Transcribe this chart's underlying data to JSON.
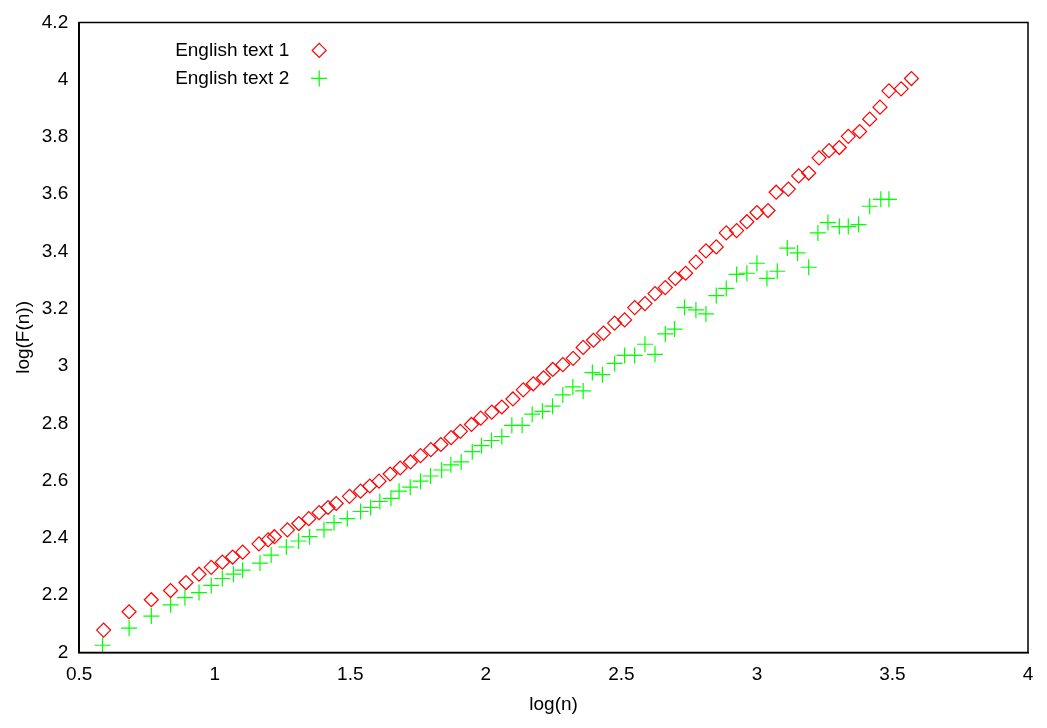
{
  "chart_data": {
    "type": "scatter",
    "xlabel": "log(n)",
    "ylabel": "log(F(n))",
    "xlim": [
      0.5,
      4
    ],
    "xticks": [
      0.5,
      1,
      1.5,
      2,
      2.5,
      3,
      3.5,
      4
    ],
    "ylim": [
      2,
      4.2
    ],
    "yticks": [
      2,
      2.2,
      2.4,
      2.6,
      2.8,
      3,
      3.2,
      3.4,
      3.6,
      3.8,
      4,
      4.2
    ],
    "grid": false,
    "legend": "top left",
    "series": [
      {
        "name": "English text 1",
        "color": "#ff0000",
        "marker": "diamond",
        "x": [
          0.59,
          0.684,
          0.766,
          0.837,
          0.894,
          0.942,
          0.987,
          1.028,
          1.066,
          1.103,
          1.163,
          1.197,
          1.22,
          1.268,
          1.31,
          1.347,
          1.385,
          1.418,
          1.448,
          1.497,
          1.538,
          1.572,
          1.606,
          1.647,
          1.684,
          1.722,
          1.759,
          1.797,
          1.834,
          1.872,
          1.906,
          1.947,
          1.981,
          2.022,
          2.059,
          2.1,
          2.138,
          2.175,
          2.213,
          2.247,
          2.284,
          2.322,
          2.359,
          2.397,
          2.434,
          2.475,
          2.512,
          2.549,
          2.587,
          2.624,
          2.662,
          2.699,
          2.737,
          2.775,
          2.812,
          2.85,
          2.887,
          2.925,
          2.963,
          3.0,
          3.041,
          3.071,
          3.116,
          3.154,
          3.191,
          3.229,
          3.266,
          3.304,
          3.337,
          3.379,
          3.416,
          3.454,
          3.487,
          3.532,
          3.57
        ],
        "values": [
          2.078,
          2.142,
          2.184,
          2.216,
          2.244,
          2.273,
          2.297,
          2.315,
          2.333,
          2.35,
          2.379,
          2.393,
          2.404,
          2.428,
          2.45,
          2.467,
          2.488,
          2.506,
          2.52,
          2.545,
          2.563,
          2.581,
          2.598,
          2.623,
          2.644,
          2.665,
          2.687,
          2.708,
          2.726,
          2.75,
          2.772,
          2.796,
          2.818,
          2.839,
          2.857,
          2.885,
          2.917,
          2.938,
          2.959,
          2.988,
          3.005,
          3.027,
          3.065,
          3.09,
          3.115,
          3.15,
          3.161,
          3.204,
          3.218,
          3.253,
          3.274,
          3.306,
          3.324,
          3.363,
          3.402,
          3.416,
          3.465,
          3.473,
          3.504,
          3.536,
          3.543,
          3.607,
          3.618,
          3.664,
          3.674,
          3.727,
          3.752,
          3.763,
          3.802,
          3.819,
          3.862,
          3.904,
          3.961,
          3.968,
          4.004
        ]
      },
      {
        "name": "English text 2",
        "color": "#00ff00",
        "marker": "cross",
        "x": [
          0.586,
          0.684,
          0.766,
          0.837,
          0.89,
          0.942,
          0.987,
          1.028,
          1.069,
          1.103,
          1.167,
          1.208,
          1.264,
          1.309,
          1.35,
          1.403,
          1.44,
          1.489,
          1.538,
          1.575,
          1.609,
          1.65,
          1.68,
          1.721,
          1.759,
          1.796,
          1.837,
          1.871,
          1.909,
          1.95,
          1.984,
          2.021,
          2.059,
          2.096,
          2.134,
          2.171,
          2.209,
          2.246,
          2.284,
          2.321,
          2.359,
          2.393,
          2.43,
          2.475,
          2.512,
          2.549,
          2.587,
          2.624,
          2.662,
          2.696,
          2.733,
          2.775,
          2.812,
          2.85,
          2.887,
          2.925,
          2.963,
          3.0,
          3.037,
          3.075,
          3.112,
          3.15,
          3.191,
          3.225,
          3.262,
          3.304,
          3.337,
          3.375,
          3.416,
          3.457,
          3.487
        ],
        "values": [
          2.025,
          2.085,
          2.127,
          2.166,
          2.191,
          2.209,
          2.234,
          2.258,
          2.273,
          2.287,
          2.312,
          2.34,
          2.368,
          2.389,
          2.404,
          2.428,
          2.453,
          2.467,
          2.492,
          2.506,
          2.527,
          2.538,
          2.563,
          2.577,
          2.598,
          2.616,
          2.637,
          2.655,
          2.665,
          2.701,
          2.722,
          2.74,
          2.754,
          2.793,
          2.793,
          2.832,
          2.842,
          2.86,
          2.899,
          2.927,
          2.913,
          2.977,
          2.97,
          3.009,
          3.037,
          3.037,
          3.076,
          3.041,
          3.112,
          3.129,
          3.204,
          3.196,
          3.182,
          3.246,
          3.271,
          3.32,
          3.324,
          3.359,
          3.306,
          3.331,
          3.412,
          3.395,
          3.345,
          3.465,
          3.501,
          3.487,
          3.487,
          3.494,
          3.558,
          3.582,
          3.582
        ]
      }
    ]
  }
}
